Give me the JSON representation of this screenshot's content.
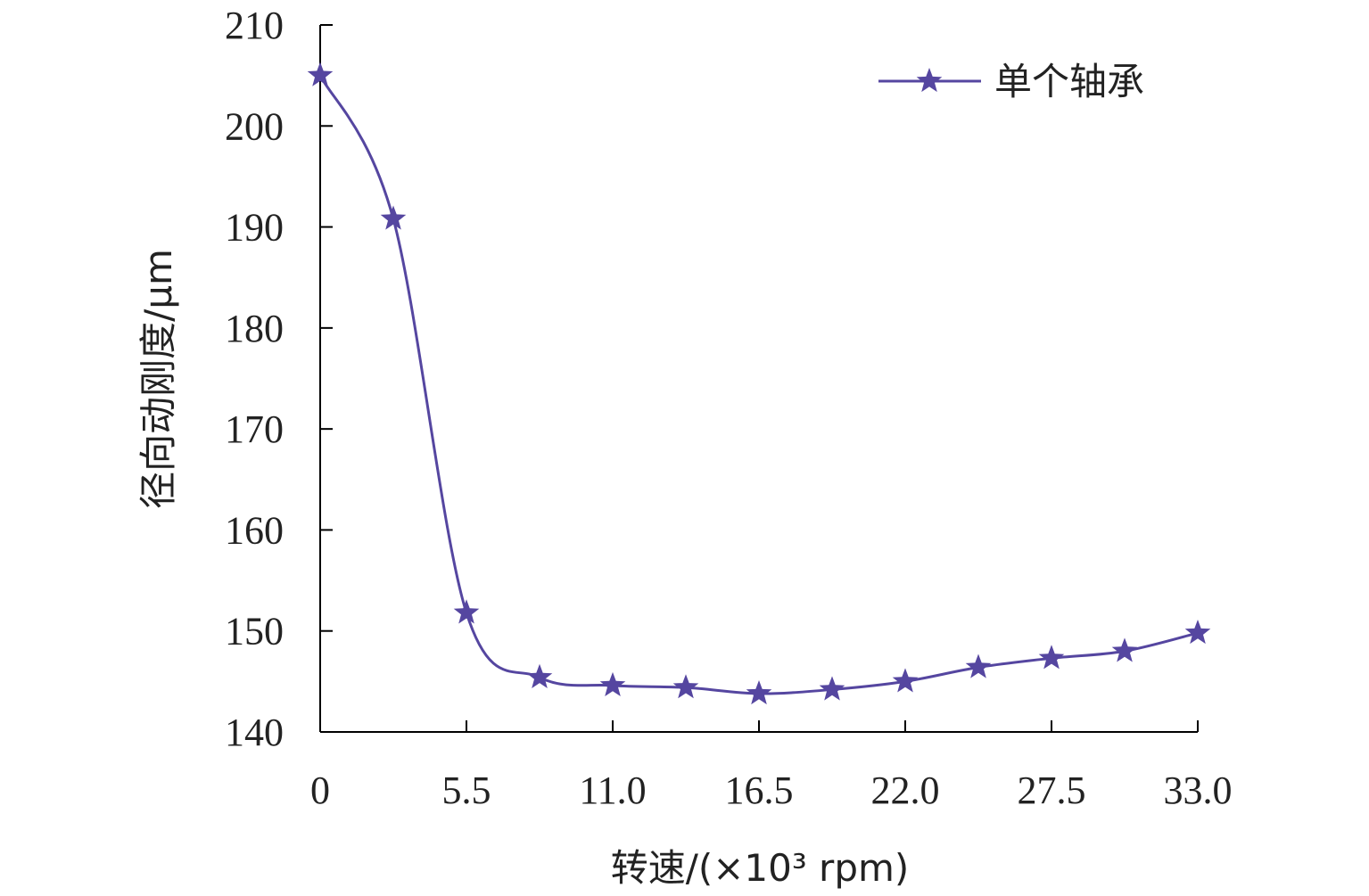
{
  "chart_data": {
    "type": "line",
    "title": "",
    "xlabel": "转速/(×10³ rpm)",
    "ylabel": "径向动刚度/μm",
    "xlim": [
      0,
      33
    ],
    "ylim": [
      140,
      210
    ],
    "x_ticks": [
      0,
      5.5,
      11.0,
      16.5,
      22.0,
      27.5,
      33.0
    ],
    "x_tick_labels": [
      "0",
      "5.5",
      "11.0",
      "16.5",
      "22.0",
      "27.5",
      "33.0"
    ],
    "y_ticks": [
      140,
      150,
      160,
      170,
      180,
      190,
      200,
      210
    ],
    "y_tick_labels": [
      "140",
      "150",
      "160",
      "170",
      "180",
      "190",
      "200",
      "210"
    ],
    "grid": false,
    "legend_position": "top-right",
    "series": [
      {
        "name": "单个轴承",
        "color": "#5546a0",
        "marker": "star",
        "smooth": true,
        "x": [
          0,
          2.75,
          5.5,
          8.25,
          11.0,
          13.75,
          16.5,
          19.25,
          22.0,
          24.75,
          27.5,
          30.25,
          33.0
        ],
        "y": [
          205.0,
          190.8,
          151.8,
          145.4,
          144.6,
          144.4,
          143.8,
          144.2,
          145.0,
          146.4,
          147.3,
          148.0,
          149.8
        ]
      }
    ]
  }
}
